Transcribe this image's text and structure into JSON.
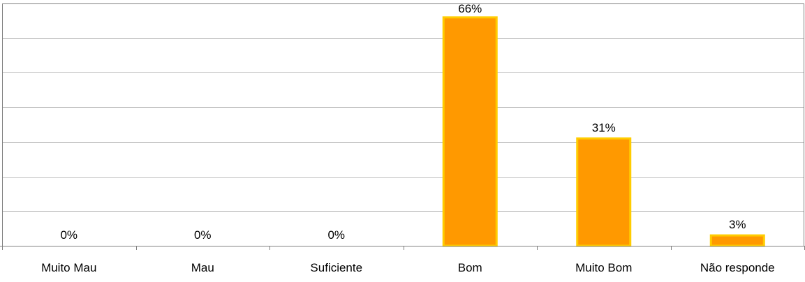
{
  "chart_data": {
    "type": "bar",
    "categories": [
      "Muito Mau",
      "Mau",
      "Suficiente",
      "Bom",
      "Muito Bom",
      "Não responde"
    ],
    "values": [
      0,
      0,
      0,
      66,
      31,
      3
    ],
    "value_labels": [
      "0%",
      "0%",
      "0%",
      "66%",
      "31%",
      "3%"
    ],
    "unit": "%",
    "ylim": [
      0,
      70
    ],
    "grid": true,
    "legend": "none",
    "title": "",
    "xlabel": "",
    "ylabel": ""
  },
  "colors": {
    "bar_fill": "#FF9900",
    "bar_stroke": "#FFCC00",
    "grid": "#C0C0C0",
    "axis": "#808080",
    "frame": "#808080",
    "text": "#000000"
  }
}
